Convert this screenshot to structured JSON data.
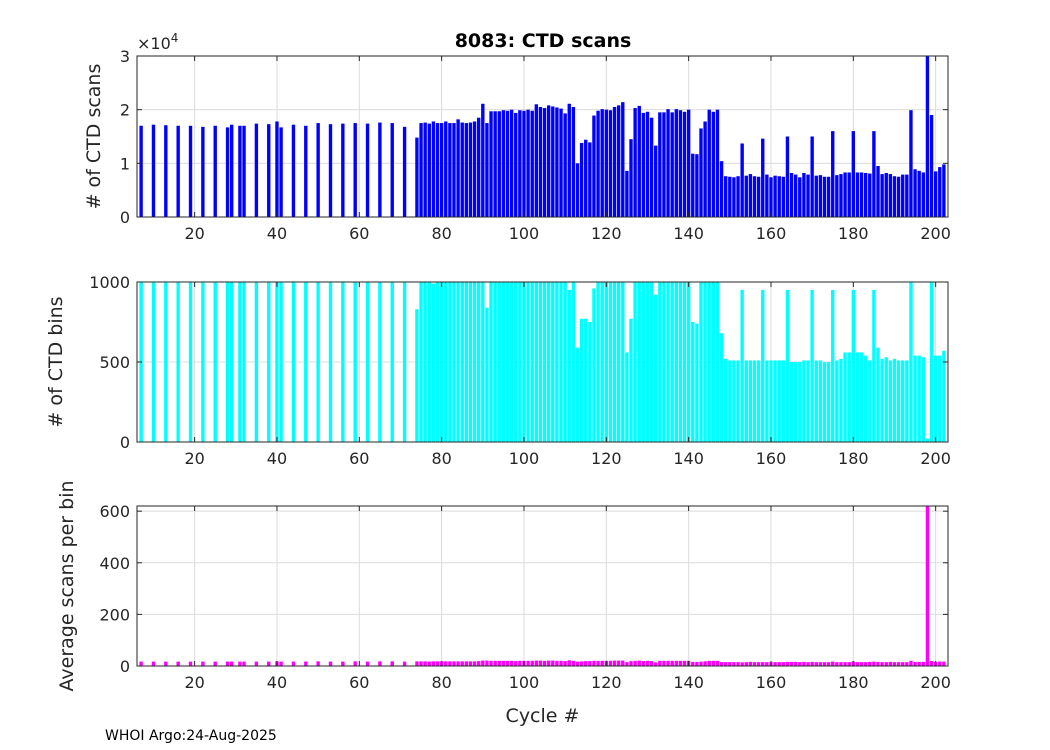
{
  "figure": {
    "title": "8083: CTD scans",
    "footer": "WHOI Argo:24-Aug-2025"
  },
  "chart_data": [
    {
      "type": "bar",
      "ylabel": "# of CTD scans",
      "xlabel": "",
      "exponent_label": "×10",
      "exponent_power": "4",
      "xlim": [
        6,
        203
      ],
      "ylim": [
        0,
        30000
      ],
      "xticks": [
        20,
        40,
        60,
        80,
        100,
        120,
        140,
        160,
        180,
        200
      ],
      "xtick_labels": [
        "20",
        "40",
        "60",
        "80",
        "100",
        "120",
        "140",
        "160",
        "180",
        "200"
      ],
      "yticks": [
        0,
        10000,
        20000,
        30000
      ],
      "ytick_labels": [
        "0",
        "1",
        "2",
        "3"
      ],
      "grid": true,
      "color": "#0000ff",
      "x": [
        7,
        10,
        13,
        16,
        19,
        22,
        25,
        28,
        29,
        31,
        32,
        35,
        38,
        40,
        41,
        44,
        47,
        50,
        53,
        56,
        59,
        62,
        65,
        68,
        71,
        74,
        75,
        76,
        77,
        78,
        79,
        80,
        81,
        82,
        83,
        84,
        85,
        86,
        87,
        88,
        89,
        90,
        91,
        92,
        93,
        94,
        95,
        96,
        97,
        98,
        99,
        100,
        101,
        102,
        103,
        104,
        105,
        106,
        107,
        108,
        109,
        110,
        111,
        112,
        113,
        114,
        115,
        116,
        117,
        118,
        119,
        120,
        121,
        122,
        123,
        124,
        125,
        126,
        127,
        128,
        129,
        130,
        131,
        132,
        133,
        134,
        135,
        136,
        137,
        138,
        139,
        140,
        141,
        142,
        143,
        144,
        145,
        146,
        147,
        148,
        149,
        150,
        151,
        152,
        153,
        154,
        155,
        156,
        157,
        158,
        159,
        160,
        161,
        162,
        163,
        164,
        165,
        166,
        167,
        168,
        169,
        170,
        171,
        172,
        173,
        174,
        175,
        176,
        177,
        178,
        179,
        180,
        181,
        182,
        183,
        184,
        185,
        186,
        187,
        188,
        189,
        190,
        191,
        192,
        193,
        194,
        195,
        196,
        197,
        198,
        199,
        200,
        201,
        202
      ],
      "values": [
        17000,
        17200,
        17100,
        17000,
        17000,
        16800,
        17000,
        16700,
        17200,
        17000,
        17000,
        17400,
        17300,
        17800,
        16700,
        17200,
        17000,
        17500,
        17300,
        17400,
        17500,
        17400,
        17600,
        17500,
        16800,
        14800,
        17500,
        17600,
        17400,
        17800,
        17500,
        17500,
        17800,
        17500,
        17500,
        18200,
        17600,
        17500,
        17600,
        17800,
        18500,
        21100,
        17500,
        19700,
        19700,
        19700,
        19900,
        19800,
        20000,
        19400,
        19900,
        19800,
        20000,
        19800,
        21000,
        20500,
        20300,
        20800,
        20600,
        20400,
        20200,
        19300,
        21100,
        20500,
        10000,
        13800,
        14400,
        13900,
        18900,
        19800,
        20100,
        20000,
        19900,
        20500,
        20800,
        21400,
        8600,
        14500,
        20300,
        20700,
        19400,
        19600,
        18500,
        13300,
        19500,
        19500,
        20100,
        19500,
        20100,
        19900,
        19600,
        20000,
        11800,
        11700,
        16500,
        17800,
        20000,
        19600,
        20000,
        10400,
        7600,
        7500,
        7400,
        7600,
        13700,
        7700,
        8000,
        7600,
        7500,
        14600,
        7900,
        7400,
        7700,
        7600,
        7500,
        15000,
        8200,
        7900,
        7400,
        8200,
        7900,
        15000,
        7700,
        7800,
        7500,
        7500,
        16000,
        7800,
        8000,
        8300,
        8300,
        16000,
        8300,
        8300,
        8200,
        8100,
        16000,
        9500,
        8000,
        8200,
        8000,
        7600,
        7500,
        7900,
        7900,
        19900,
        8900,
        8600,
        8300,
        30000,
        19000,
        8500,
        9300,
        9800
      ]
    },
    {
      "type": "bar",
      "ylabel": "# of CTD bins",
      "xlabel": "",
      "xlim": [
        6,
        203
      ],
      "ylim": [
        0,
        1000
      ],
      "xticks": [
        20,
        40,
        60,
        80,
        100,
        120,
        140,
        160,
        180,
        200
      ],
      "xtick_labels": [
        "20",
        "40",
        "60",
        "80",
        "100",
        "120",
        "140",
        "160",
        "180",
        "200"
      ],
      "yticks": [
        0,
        500,
        1000
      ],
      "ytick_labels": [
        "0",
        "500",
        "1000"
      ],
      "grid": true,
      "color": "#00ffff",
      "x": [
        7,
        10,
        13,
        16,
        19,
        22,
        25,
        28,
        29,
        31,
        32,
        35,
        38,
        40,
        41,
        44,
        47,
        50,
        53,
        56,
        59,
        62,
        65,
        68,
        71,
        74,
        75,
        76,
        77,
        78,
        79,
        80,
        81,
        82,
        83,
        84,
        85,
        86,
        87,
        88,
        89,
        90,
        91,
        92,
        93,
        94,
        95,
        96,
        97,
        98,
        99,
        100,
        101,
        102,
        103,
        104,
        105,
        106,
        107,
        108,
        109,
        110,
        111,
        112,
        113,
        114,
        115,
        116,
        117,
        118,
        119,
        120,
        121,
        122,
        123,
        124,
        125,
        126,
        127,
        128,
        129,
        130,
        131,
        132,
        133,
        134,
        135,
        136,
        137,
        138,
        139,
        140,
        141,
        142,
        143,
        144,
        145,
        146,
        147,
        148,
        149,
        150,
        151,
        152,
        153,
        154,
        155,
        156,
        157,
        158,
        159,
        160,
        161,
        162,
        163,
        164,
        165,
        166,
        167,
        168,
        169,
        170,
        171,
        172,
        173,
        174,
        175,
        176,
        177,
        178,
        179,
        180,
        181,
        182,
        183,
        184,
        185,
        186,
        187,
        188,
        189,
        190,
        191,
        192,
        193,
        194,
        195,
        196,
        197,
        198,
        199,
        200,
        201,
        202
      ],
      "values": [
        1000,
        1000,
        1000,
        1000,
        1000,
        1000,
        1000,
        1000,
        1000,
        1000,
        1000,
        1000,
        1000,
        1000,
        1000,
        1000,
        1000,
        1000,
        1000,
        1000,
        1000,
        1000,
        1000,
        1000,
        1000,
        830,
        1000,
        1000,
        1000,
        990,
        1000,
        1000,
        1000,
        1000,
        1000,
        1000,
        1000,
        1000,
        1000,
        1000,
        1000,
        1000,
        840,
        1000,
        1000,
        1000,
        1000,
        1000,
        1000,
        1000,
        1000,
        1000,
        1000,
        1000,
        1000,
        1000,
        1000,
        1000,
        1000,
        1000,
        1000,
        1000,
        950,
        1000,
        590,
        770,
        770,
        750,
        960,
        1000,
        1000,
        1000,
        1000,
        1000,
        1000,
        1000,
        560,
        770,
        1000,
        1000,
        1000,
        1000,
        1000,
        920,
        1000,
        1000,
        1000,
        1000,
        1000,
        1000,
        1000,
        1000,
        750,
        740,
        1000,
        1000,
        1000,
        1000,
        1000,
        680,
        520,
        510,
        510,
        510,
        950,
        510,
        510,
        510,
        510,
        950,
        510,
        510,
        510,
        510,
        510,
        950,
        500,
        500,
        500,
        510,
        510,
        950,
        510,
        510,
        500,
        500,
        950,
        510,
        520,
        560,
        560,
        950,
        560,
        560,
        540,
        510,
        950,
        590,
        520,
        530,
        510,
        520,
        510,
        510,
        510,
        1000,
        540,
        540,
        530,
        20,
        1000,
        540,
        540,
        570
      ]
    },
    {
      "type": "bar",
      "ylabel": "Average scans per bin",
      "xlabel": "Cycle #",
      "xlim": [
        6,
        203
      ],
      "ylim": [
        0,
        620
      ],
      "xticks": [
        20,
        40,
        60,
        80,
        100,
        120,
        140,
        160,
        180,
        200
      ],
      "xtick_labels": [
        "20",
        "40",
        "60",
        "80",
        "100",
        "120",
        "140",
        "160",
        "180",
        "200"
      ],
      "yticks": [
        0,
        200,
        400,
        600
      ],
      "ytick_labels": [
        "0",
        "200",
        "400",
        "600"
      ],
      "grid": true,
      "color": "#ff00ff",
      "x": [
        7,
        10,
        13,
        16,
        19,
        22,
        25,
        28,
        29,
        31,
        32,
        35,
        38,
        40,
        41,
        44,
        47,
        50,
        53,
        56,
        59,
        62,
        65,
        68,
        71,
        74,
        75,
        76,
        77,
        78,
        79,
        80,
        81,
        82,
        83,
        84,
        85,
        86,
        87,
        88,
        89,
        90,
        91,
        92,
        93,
        94,
        95,
        96,
        97,
        98,
        99,
        100,
        101,
        102,
        103,
        104,
        105,
        106,
        107,
        108,
        109,
        110,
        111,
        112,
        113,
        114,
        115,
        116,
        117,
        118,
        119,
        120,
        121,
        122,
        123,
        124,
        125,
        126,
        127,
        128,
        129,
        130,
        131,
        132,
        133,
        134,
        135,
        136,
        137,
        138,
        139,
        140,
        141,
        142,
        143,
        144,
        145,
        146,
        147,
        148,
        149,
        150,
        151,
        152,
        153,
        154,
        155,
        156,
        157,
        158,
        159,
        160,
        161,
        162,
        163,
        164,
        165,
        166,
        167,
        168,
        169,
        170,
        171,
        172,
        173,
        174,
        175,
        176,
        177,
        178,
        179,
        180,
        181,
        182,
        183,
        184,
        185,
        186,
        187,
        188,
        189,
        190,
        191,
        192,
        193,
        194,
        195,
        196,
        197,
        198,
        199,
        200,
        201,
        202
      ],
      "values": [
        17,
        17,
        17,
        17,
        17,
        17,
        17,
        17,
        17,
        17,
        17,
        17,
        17,
        18,
        17,
        17,
        17,
        18,
        17,
        17,
        18,
        17,
        18,
        18,
        17,
        18,
        18,
        18,
        17,
        18,
        18,
        18,
        18,
        18,
        18,
        18,
        18,
        18,
        18,
        18,
        19,
        21,
        21,
        20,
        20,
        20,
        20,
        20,
        20,
        19,
        20,
        20,
        20,
        20,
        21,
        21,
        20,
        21,
        21,
        20,
        20,
        19,
        22,
        20,
        17,
        18,
        19,
        19,
        20,
        20,
        20,
        20,
        20,
        21,
        21,
        21,
        15,
        19,
        20,
        21,
        19,
        20,
        19,
        14,
        20,
        20,
        20,
        20,
        20,
        20,
        20,
        20,
        16,
        16,
        17,
        18,
        20,
        20,
        20,
        15,
        15,
        15,
        15,
        15,
        14,
        15,
        16,
        15,
        15,
        15,
        15,
        15,
        15,
        15,
        15,
        16,
        16,
        16,
        15,
        16,
        15,
        16,
        15,
        15,
        15,
        15,
        17,
        15,
        15,
        15,
        15,
        17,
        15,
        15,
        15,
        16,
        17,
        16,
        15,
        15,
        16,
        15,
        15,
        15,
        15,
        20,
        16,
        16,
        16,
        620,
        19,
        16,
        17,
        17
      ]
    }
  ]
}
